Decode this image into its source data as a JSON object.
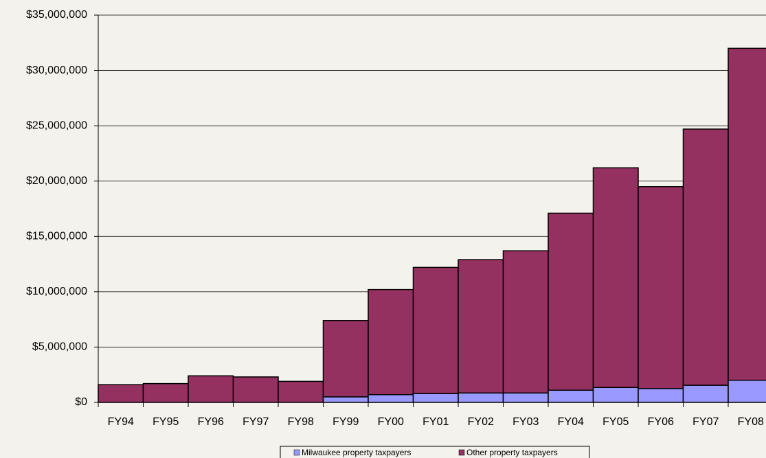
{
  "chart_data": {
    "type": "stacked-bar",
    "categories": [
      "FY94",
      "FY95",
      "FY96",
      "FY97",
      "FY98",
      "FY99",
      "FY00",
      "FY01",
      "FY02",
      "FY03",
      "FY04",
      "FY05",
      "FY06",
      "FY07",
      "FY08"
    ],
    "series": [
      {
        "name": "Milwaukee property taxpayers",
        "color": "#9999ff",
        "values": [
          0,
          0,
          0,
          0,
          0,
          500000,
          700000,
          800000,
          850000,
          850000,
          1100000,
          1350000,
          1250000,
          1550000,
          2000000
        ]
      },
      {
        "name": "Other property taxpayers",
        "color": "#943160",
        "values": [
          1600000,
          1700000,
          2400000,
          2300000,
          1900000,
          6900000,
          9500000,
          11400000,
          12050000,
          12850000,
          16000000,
          19850000,
          18250000,
          23150000,
          30000000
        ]
      }
    ],
    "ylim": [
      0,
      35000000
    ],
    "yticks": [
      {
        "value": 0,
        "label": "$0"
      },
      {
        "value": 5000000,
        "label": "$5,000,000"
      },
      {
        "value": 10000000,
        "label": "$10,000,000"
      },
      {
        "value": 15000000,
        "label": "$15,000,000"
      },
      {
        "value": 20000000,
        "label": "$20,000,000"
      },
      {
        "value": 25000000,
        "label": "$25,000,000"
      },
      {
        "value": 30000000,
        "label": "$30,000,000"
      },
      {
        "value": 35000000,
        "label": "$35,000,000"
      }
    ],
    "grid": true,
    "legend": "bottom"
  }
}
